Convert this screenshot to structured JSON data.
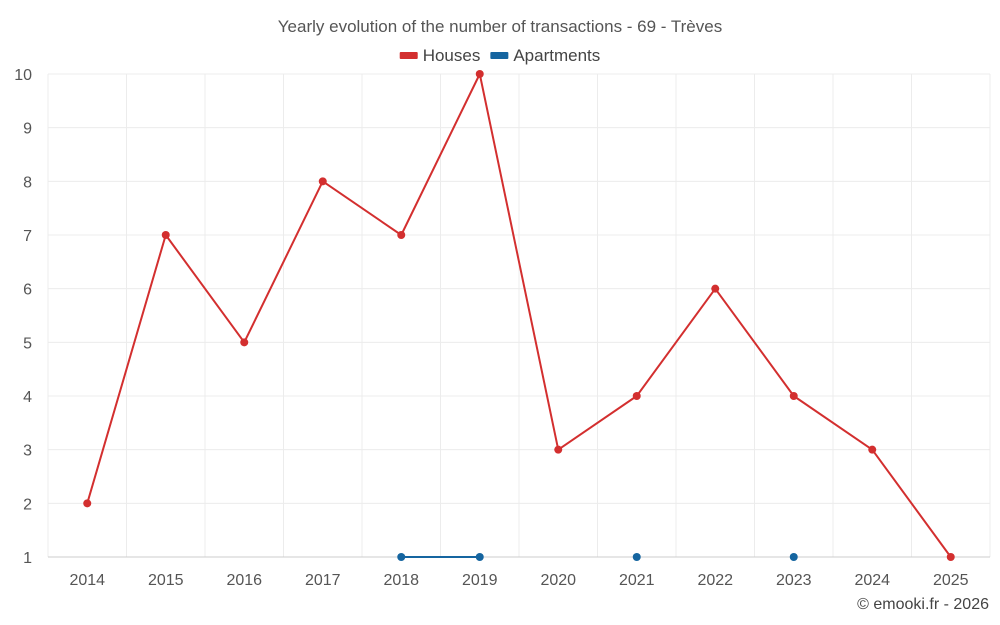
{
  "chart_data": {
    "type": "line",
    "title": "Yearly evolution of the number of transactions - 69 - Trèves",
    "categories": [
      "2014",
      "2015",
      "2016",
      "2017",
      "2018",
      "2019",
      "2020",
      "2021",
      "2022",
      "2023",
      "2024",
      "2025"
    ],
    "series": [
      {
        "name": "Houses",
        "color": "#d32f2f",
        "values": [
          2,
          7,
          5,
          8,
          7,
          10,
          3,
          4,
          6,
          4,
          3,
          1
        ]
      },
      {
        "name": "Apartments",
        "color": "#1565a0",
        "values": [
          null,
          null,
          null,
          null,
          1,
          1,
          null,
          1,
          null,
          1,
          null,
          null
        ]
      }
    ],
    "ylim": [
      1,
      10
    ],
    "yticks": [
      "1",
      "2",
      "3",
      "4",
      "5",
      "6",
      "7",
      "8",
      "9",
      "10"
    ],
    "xlabel": "",
    "ylabel": "",
    "grid": true,
    "legend_position": "top-center"
  },
  "credit": "© emooki.fr - 2026"
}
